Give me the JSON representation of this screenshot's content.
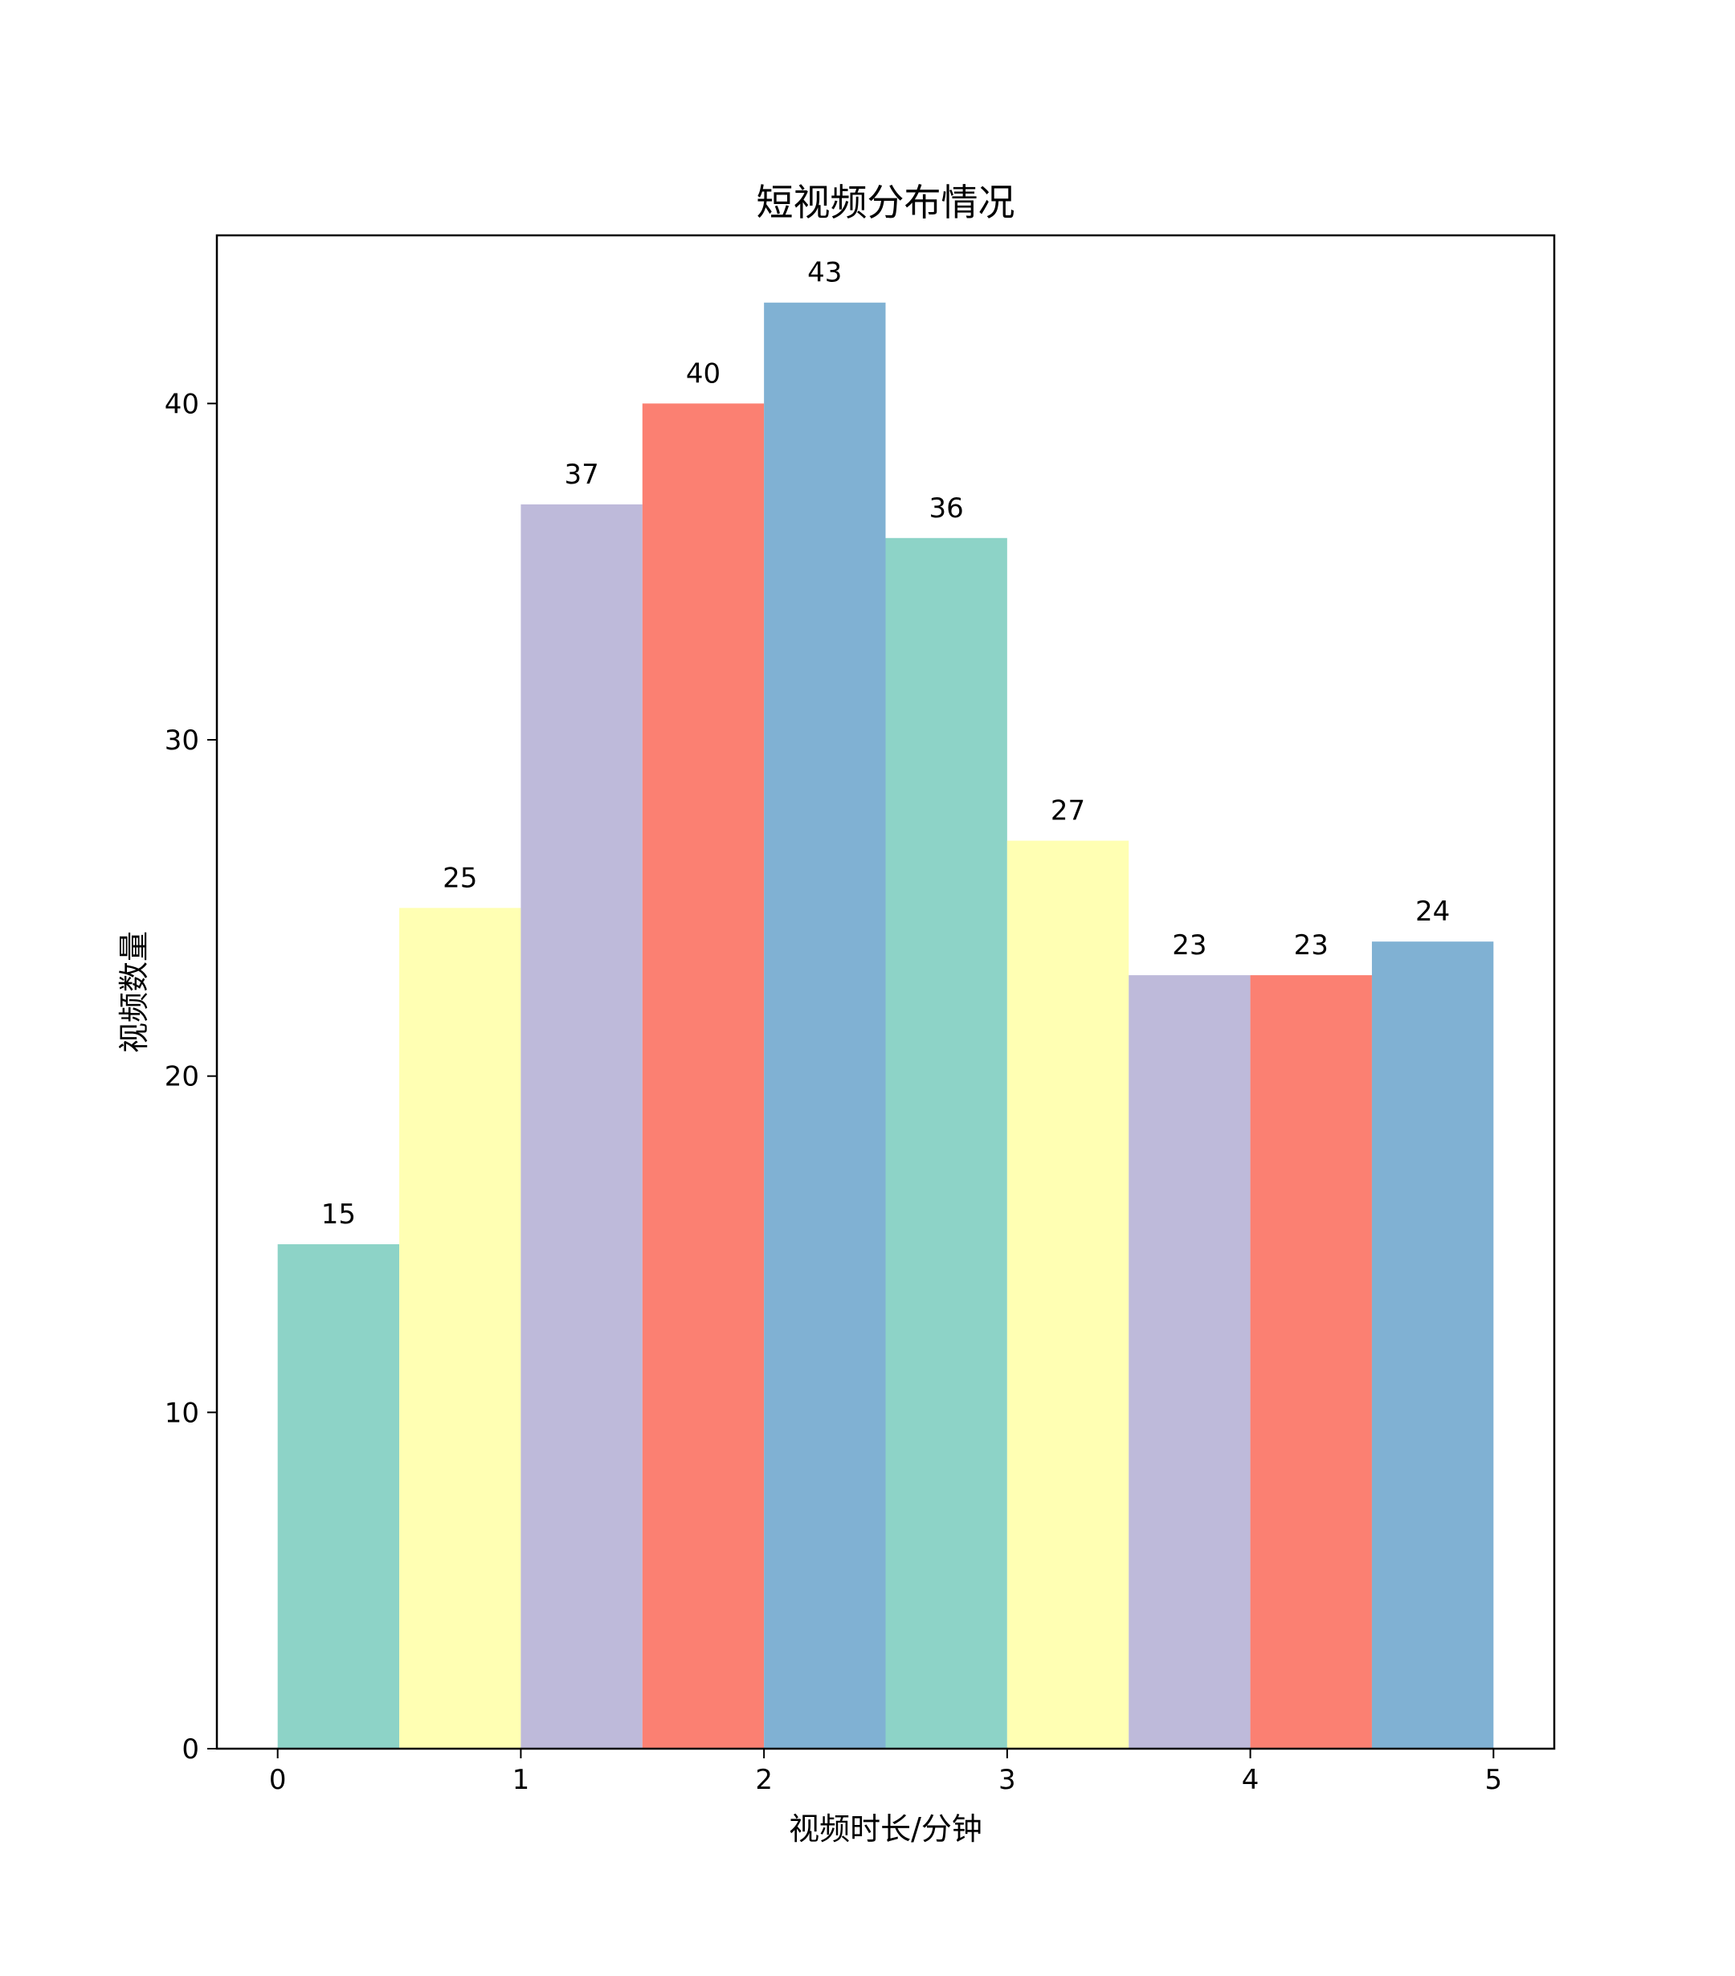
{
  "chart_data": {
    "type": "bar",
    "title": "短视频分布情况",
    "xlabel": "视频时长/分钟",
    "ylabel": "视频数量",
    "bins": [
      {
        "x0": 0.0,
        "x1": 0.5,
        "value": 15
      },
      {
        "x0": 0.5,
        "x1": 1.0,
        "value": 25
      },
      {
        "x0": 1.0,
        "x1": 1.5,
        "value": 37
      },
      {
        "x0": 1.5,
        "x1": 2.0,
        "value": 40
      },
      {
        "x0": 2.0,
        "x1": 2.5,
        "value": 43
      },
      {
        "x0": 2.5,
        "x1": 3.0,
        "value": 36
      },
      {
        "x0": 3.0,
        "x1": 3.5,
        "value": 27
      },
      {
        "x0": 3.5,
        "x1": 4.0,
        "value": 23
      },
      {
        "x0": 4.0,
        "x1": 4.5,
        "value": 23
      },
      {
        "x0": 4.5,
        "x1": 5.0,
        "value": 24
      }
    ],
    "colors": [
      "#8dd3c7",
      "#ffffb3",
      "#bebada",
      "#fb8072",
      "#80b1d3"
    ],
    "xlim": [
      -0.25,
      5.25
    ],
    "ylim": [
      0,
      45
    ],
    "xticks": [
      0,
      1,
      2,
      3,
      4,
      5
    ],
    "yticks": [
      0,
      10,
      20,
      30,
      40
    ],
    "grid": false,
    "legend": "none"
  }
}
